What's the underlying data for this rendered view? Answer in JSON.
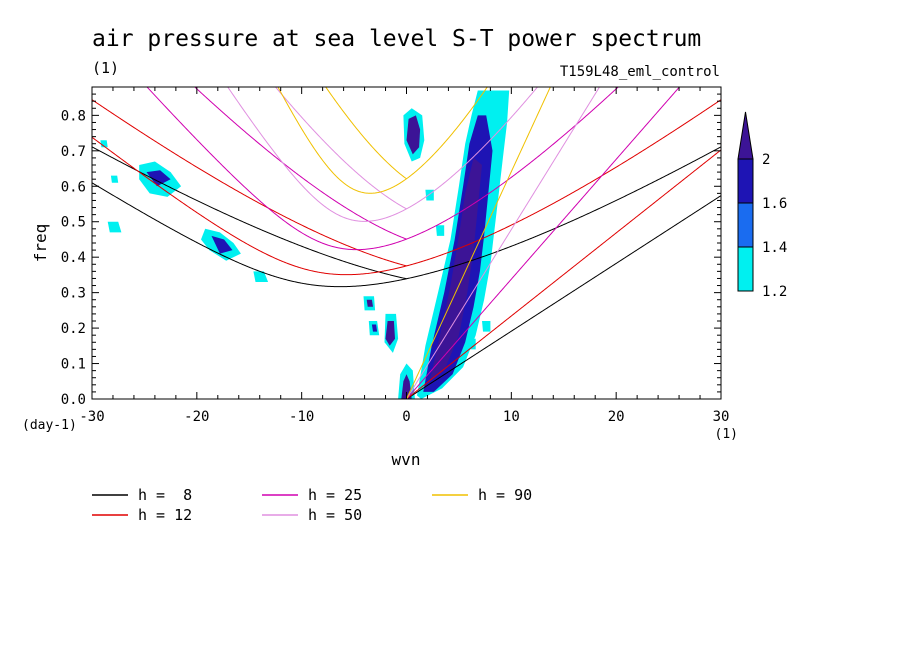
{
  "chart_data": {
    "type": "heatmap",
    "title": "air pressure at sea level S-T power spectrum",
    "title_units": "(1)",
    "subtitle": "T159L48_eml_control",
    "xlabel": "wvn",
    "ylabel": "freq",
    "x_units": "(1)",
    "y_units": "(day-1)",
    "xlim": [
      -30,
      30
    ],
    "ylim": [
      0,
      0.88
    ],
    "x_ticks": [
      -30,
      -20,
      -10,
      0,
      10,
      20,
      30
    ],
    "x_tick_labels": [
      "-30",
      "-20",
      "-10",
      "0",
      "10",
      "20",
      "30"
    ],
    "y_ticks": [
      0.0,
      0.1,
      0.2,
      0.3,
      0.4,
      0.5,
      0.6,
      0.7,
      0.8
    ],
    "y_tick_labels": [
      "0.0",
      "0.1",
      "0.2",
      "0.3",
      "0.4",
      "0.5",
      "0.6",
      "0.7",
      "0.8"
    ],
    "colorbar": {
      "levels": [
        1.2,
        1.4,
        1.6,
        2.0
      ],
      "labels": [
        "1.2",
        "1.4",
        "1.6",
        "2"
      ],
      "colors": [
        "#00f0f0",
        "#1a6cf0",
        "#1e14b4",
        "#3c1496"
      ]
    },
    "shaded_regions": [
      {
        "level": 1.2,
        "polygon": [
          [
            1.0,
            0.01
          ],
          [
            1.8,
            0.15
          ],
          [
            3.0,
            0.3
          ],
          [
            4.2,
            0.45
          ],
          [
            5.0,
            0.6
          ],
          [
            5.6,
            0.72
          ],
          [
            6.2,
            0.8
          ],
          [
            6.8,
            0.87
          ],
          [
            9.8,
            0.87
          ],
          [
            9.6,
            0.78
          ],
          [
            9.2,
            0.68
          ],
          [
            8.8,
            0.58
          ],
          [
            8.4,
            0.48
          ],
          [
            8.0,
            0.38
          ],
          [
            7.4,
            0.28
          ],
          [
            6.6,
            0.18
          ],
          [
            5.4,
            0.09
          ],
          [
            3.4,
            0.03
          ],
          [
            1.4,
            0.0
          ]
        ]
      },
      {
        "level": 1.6,
        "polygon": [
          [
            1.6,
            0.02
          ],
          [
            2.4,
            0.15
          ],
          [
            3.6,
            0.3
          ],
          [
            4.6,
            0.45
          ],
          [
            5.4,
            0.6
          ],
          [
            6.0,
            0.72
          ],
          [
            6.8,
            0.8
          ],
          [
            7.6,
            0.8
          ],
          [
            8.2,
            0.7
          ],
          [
            7.8,
            0.58
          ],
          [
            7.4,
            0.46
          ],
          [
            7.0,
            0.36
          ],
          [
            6.4,
            0.26
          ],
          [
            5.6,
            0.16
          ],
          [
            4.4,
            0.07
          ],
          [
            2.6,
            0.02
          ]
        ]
      },
      {
        "level": 2.0,
        "polygon": [
          [
            2.2,
            0.05
          ],
          [
            3.2,
            0.18
          ],
          [
            4.2,
            0.32
          ],
          [
            5.0,
            0.46
          ],
          [
            5.6,
            0.58
          ],
          [
            6.4,
            0.68
          ],
          [
            7.2,
            0.66
          ],
          [
            6.8,
            0.54
          ],
          [
            6.4,
            0.42
          ],
          [
            5.8,
            0.3
          ],
          [
            5.0,
            0.18
          ],
          [
            3.6,
            0.08
          ]
        ]
      },
      {
        "level": 1.2,
        "polygon": [
          [
            -0.8,
            0.0
          ],
          [
            -0.6,
            0.07
          ],
          [
            0.0,
            0.1
          ],
          [
            0.6,
            0.08
          ],
          [
            0.8,
            0.0
          ]
        ]
      },
      {
        "level": 2.0,
        "polygon": [
          [
            -0.5,
            0.0
          ],
          [
            -0.3,
            0.05
          ],
          [
            0.0,
            0.07
          ],
          [
            0.3,
            0.05
          ],
          [
            0.5,
            0.0
          ]
        ]
      },
      {
        "level": 1.2,
        "polygon": [
          [
            -25.5,
            0.66
          ],
          [
            -24.0,
            0.67
          ],
          [
            -22.5,
            0.64
          ],
          [
            -21.5,
            0.6
          ],
          [
            -22.8,
            0.57
          ],
          [
            -24.5,
            0.58
          ],
          [
            -25.5,
            0.62
          ]
        ]
      },
      {
        "level": 1.6,
        "polygon": [
          [
            -24.8,
            0.64
          ],
          [
            -23.5,
            0.645
          ],
          [
            -22.5,
            0.62
          ],
          [
            -23.8,
            0.6
          ]
        ]
      },
      {
        "level": 1.2,
        "polygon": [
          [
            -19.2,
            0.48
          ],
          [
            -17.8,
            0.47
          ],
          [
            -16.5,
            0.44
          ],
          [
            -15.8,
            0.41
          ],
          [
            -17.2,
            0.39
          ],
          [
            -18.8,
            0.42
          ],
          [
            -19.6,
            0.45
          ]
        ]
      },
      {
        "level": 1.6,
        "polygon": [
          [
            -18.6,
            0.46
          ],
          [
            -17.4,
            0.45
          ],
          [
            -16.6,
            0.42
          ],
          [
            -17.8,
            0.41
          ]
        ]
      },
      {
        "level": 1.2,
        "polygon": [
          [
            -14.6,
            0.36
          ],
          [
            -13.6,
            0.36
          ],
          [
            -13.2,
            0.33
          ],
          [
            -14.4,
            0.33
          ]
        ]
      },
      {
        "level": 1.2,
        "polygon": [
          [
            -28.5,
            0.5
          ],
          [
            -27.5,
            0.5
          ],
          [
            -27.2,
            0.47
          ],
          [
            -28.3,
            0.47
          ]
        ]
      },
      {
        "level": 1.2,
        "polygon": [
          [
            -0.3,
            0.8
          ],
          [
            0.5,
            0.82
          ],
          [
            1.5,
            0.8
          ],
          [
            1.7,
            0.73
          ],
          [
            1.3,
            0.68
          ],
          [
            0.5,
            0.67
          ],
          [
            -0.2,
            0.72
          ]
        ]
      },
      {
        "level": 2.0,
        "polygon": [
          [
            0.2,
            0.79
          ],
          [
            0.9,
            0.8
          ],
          [
            1.3,
            0.76
          ],
          [
            1.2,
            0.71
          ],
          [
            0.6,
            0.69
          ],
          [
            0.0,
            0.73
          ]
        ]
      },
      {
        "level": 1.2,
        "polygon": [
          [
            -4.1,
            0.29
          ],
          [
            -3.1,
            0.29
          ],
          [
            -3.0,
            0.25
          ],
          [
            -4.0,
            0.25
          ]
        ]
      },
      {
        "level": 2.0,
        "polygon": [
          [
            -3.8,
            0.28
          ],
          [
            -3.3,
            0.28
          ],
          [
            -3.2,
            0.26
          ],
          [
            -3.7,
            0.26
          ]
        ]
      },
      {
        "level": 1.2,
        "polygon": [
          [
            -2.0,
            0.24
          ],
          [
            -1.0,
            0.24
          ],
          [
            -0.8,
            0.17
          ],
          [
            -1.3,
            0.13
          ],
          [
            -2.1,
            0.16
          ]
        ]
      },
      {
        "level": 2.0,
        "polygon": [
          [
            -1.8,
            0.22
          ],
          [
            -1.2,
            0.22
          ],
          [
            -1.1,
            0.17
          ],
          [
            -1.6,
            0.15
          ],
          [
            -2.0,
            0.17
          ]
        ]
      },
      {
        "level": 1.2,
        "polygon": [
          [
            -3.6,
            0.22
          ],
          [
            -2.8,
            0.22
          ],
          [
            -2.6,
            0.18
          ],
          [
            -3.5,
            0.18
          ]
        ]
      },
      {
        "level": 1.6,
        "polygon": [
          [
            -3.3,
            0.21
          ],
          [
            -2.9,
            0.21
          ],
          [
            -2.8,
            0.19
          ],
          [
            -3.2,
            0.19
          ]
        ]
      },
      {
        "level": 1.2,
        "polygon": [
          [
            5.8,
            0.17
          ],
          [
            6.6,
            0.17
          ],
          [
            6.6,
            0.14
          ],
          [
            5.9,
            0.14
          ]
        ]
      },
      {
        "level": 1.2,
        "polygon": [
          [
            7.2,
            0.22
          ],
          [
            8.0,
            0.22
          ],
          [
            8.0,
            0.19
          ],
          [
            7.3,
            0.19
          ]
        ]
      },
      {
        "level": 1.2,
        "polygon": [
          [
            1.8,
            0.59
          ],
          [
            2.6,
            0.59
          ],
          [
            2.6,
            0.56
          ],
          [
            1.9,
            0.56
          ]
        ]
      },
      {
        "level": 1.2,
        "polygon": [
          [
            2.8,
            0.49
          ],
          [
            3.6,
            0.49
          ],
          [
            3.6,
            0.46
          ],
          [
            2.9,
            0.46
          ]
        ]
      },
      {
        "level": 1.2,
        "polygon": [
          [
            -29.2,
            0.73
          ],
          [
            -28.6,
            0.73
          ],
          [
            -28.5,
            0.71
          ],
          [
            -29.1,
            0.71
          ]
        ]
      },
      {
        "level": 1.2,
        "polygon": [
          [
            -28.2,
            0.63
          ],
          [
            -27.6,
            0.63
          ],
          [
            -27.5,
            0.61
          ],
          [
            -28.1,
            0.61
          ]
        ]
      }
    ],
    "series": [
      {
        "name": "h =  8",
        "h": 8,
        "color": "#000000"
      },
      {
        "name": "h = 12",
        "h": 12,
        "color": "#e00000"
      },
      {
        "name": "h = 25",
        "h": 25,
        "color": "#d000b0"
      },
      {
        "name": "h = 50",
        "h": 50,
        "color": "#e090e0"
      },
      {
        "name": "h = 90",
        "h": 90,
        "color": "#f0c000"
      }
    ],
    "legend_placement": "bottom",
    "grid": false
  }
}
